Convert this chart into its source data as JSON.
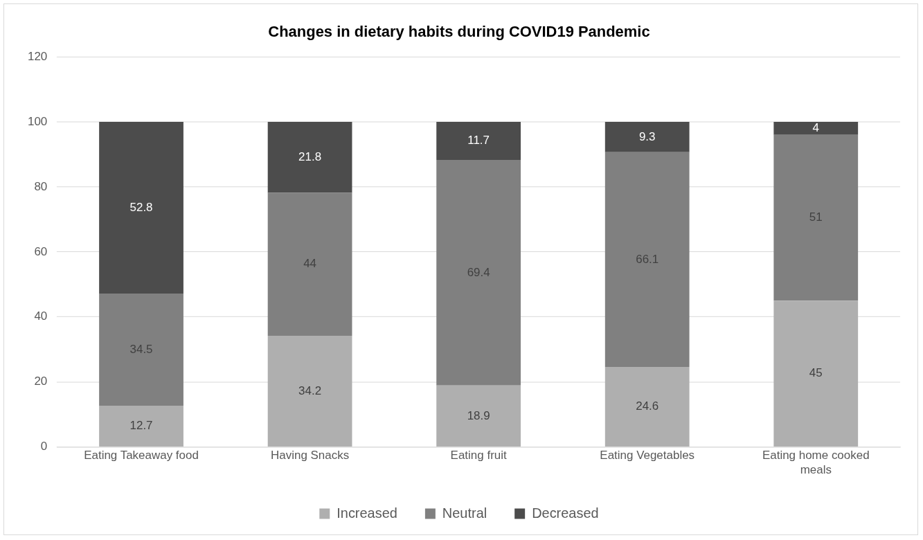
{
  "chart_data": {
    "type": "bar",
    "title": "Changes in dietary habits during COVID19 Pandemic",
    "categories": [
      "Eating Takeaway food",
      "Having Snacks",
      "Eating fruit",
      "Eating Vegetables",
      "Eating home cooked meals"
    ],
    "stacked": true,
    "ylim": [
      0,
      120
    ],
    "yticks": [
      0,
      20,
      40,
      60,
      80,
      100,
      120
    ],
    "grid": "y",
    "legend": "bottom",
    "data_labels": true,
    "series": [
      {
        "name": "Increased",
        "color": "#afafaf",
        "values": [
          12.7,
          34.2,
          18.9,
          24.6,
          45
        ]
      },
      {
        "name": "Neutral",
        "color": "#808080",
        "values": [
          34.5,
          44,
          69.4,
          66.1,
          51
        ]
      },
      {
        "name": "Decreased",
        "color": "#4c4c4c",
        "values": [
          52.8,
          21.8,
          11.7,
          9.3,
          4
        ]
      }
    ]
  }
}
